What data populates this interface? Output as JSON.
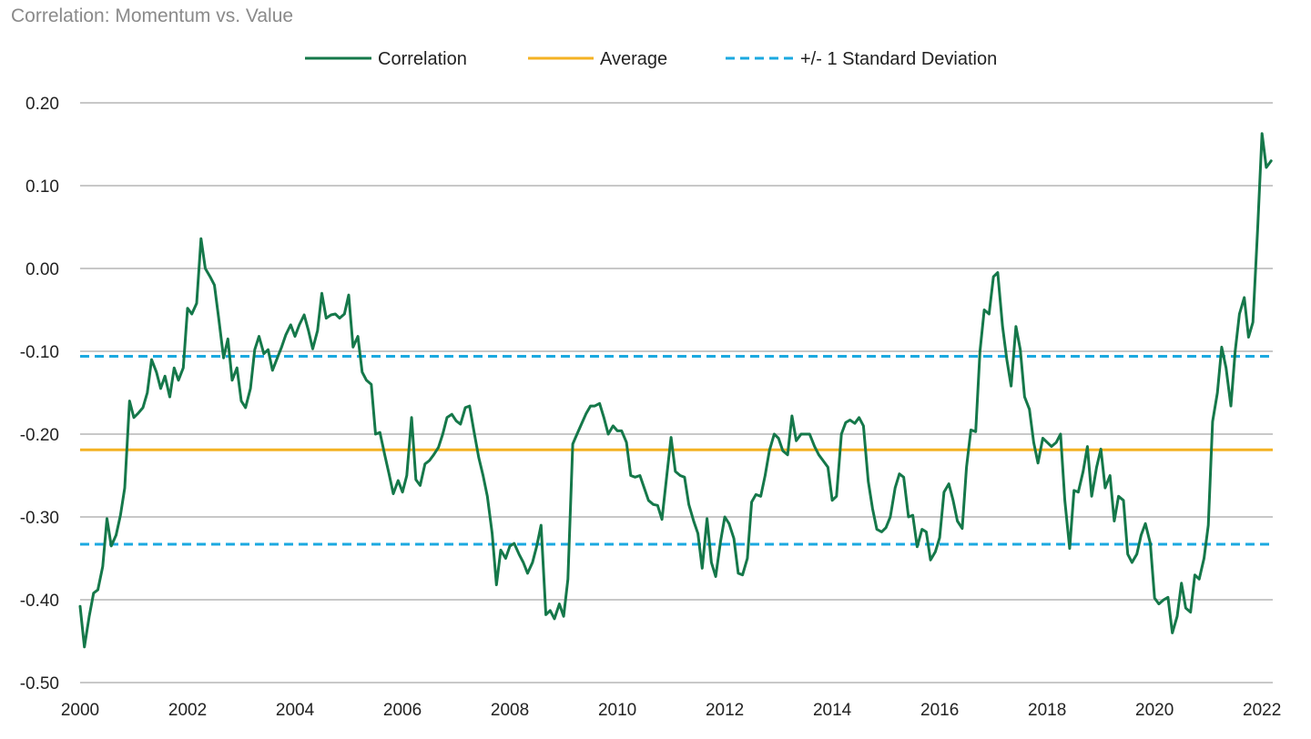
{
  "chart_data": {
    "type": "line",
    "title": "Correlation: Momentum vs. Value",
    "xlabel": "",
    "ylabel": "",
    "xlim": [
      2000,
      2022.2
    ],
    "ylim": [
      -0.5,
      0.2
    ],
    "y_ticks": [
      0.2,
      0.1,
      0.0,
      -0.1,
      -0.2,
      -0.3,
      -0.4,
      -0.5
    ],
    "y_tick_labels": [
      "0.20",
      "0.10",
      "0.00",
      "-0.10",
      "-0.20",
      "-0.30",
      "-0.40",
      "-0.50"
    ],
    "x_ticks": [
      2000,
      2002,
      2004,
      2006,
      2008,
      2010,
      2012,
      2014,
      2016,
      2018,
      2020,
      2022
    ],
    "x_tick_labels": [
      "2000",
      "2002",
      "2004",
      "2006",
      "2008",
      "2010",
      "2012",
      "2014",
      "2016",
      "2018",
      "2020",
      "2022"
    ],
    "grid": "horizontal",
    "legend_position": "top",
    "legend": [
      "Correlation",
      "Average",
      "+/- 1 Standard Deviation"
    ],
    "colors": {
      "correlation": "#15784a",
      "average": "#f4b223",
      "std": "#1ba9e0",
      "grid": "#c8c8c8"
    },
    "average": -0.219,
    "std_upper": -0.106,
    "std_lower": -0.333,
    "series": [
      {
        "name": "Correlation",
        "x": [
          2000.0,
          2000.08,
          2000.17,
          2000.25,
          2000.33,
          2000.42,
          2000.5,
          2000.58,
          2000.67,
          2000.75,
          2000.83,
          2000.92,
          2001.0,
          2001.08,
          2001.17,
          2001.25,
          2001.33,
          2001.42,
          2001.5,
          2001.58,
          2001.67,
          2001.75,
          2001.83,
          2001.92,
          2002.0,
          2002.08,
          2002.17,
          2002.25,
          2002.33,
          2002.42,
          2002.5,
          2002.58,
          2002.67,
          2002.75,
          2002.83,
          2002.92,
          2003.0,
          2003.08,
          2003.17,
          2003.25,
          2003.33,
          2003.42,
          2003.5,
          2003.58,
          2003.67,
          2003.75,
          2003.83,
          2003.92,
          2004.0,
          2004.08,
          2004.17,
          2004.25,
          2004.33,
          2004.42,
          2004.5,
          2004.58,
          2004.67,
          2004.75,
          2004.83,
          2004.92,
          2005.0,
          2005.08,
          2005.17,
          2005.25,
          2005.33,
          2005.42,
          2005.5,
          2005.58,
          2005.67,
          2005.75,
          2005.83,
          2005.92,
          2006.0,
          2006.08,
          2006.17,
          2006.25,
          2006.33,
          2006.42,
          2006.5,
          2006.58,
          2006.67,
          2006.75,
          2006.83,
          2006.92,
          2007.0,
          2007.08,
          2007.17,
          2007.25,
          2007.33,
          2007.42,
          2007.5,
          2007.58,
          2007.67,
          2007.75,
          2007.83,
          2007.92,
          2008.0,
          2008.08,
          2008.17,
          2008.25,
          2008.33,
          2008.42,
          2008.5,
          2008.58,
          2008.67,
          2008.75,
          2008.83,
          2008.92,
          2009.0,
          2009.08,
          2009.17,
          2009.25,
          2009.33,
          2009.42,
          2009.5,
          2009.58,
          2009.67,
          2009.75,
          2009.83,
          2009.92,
          2010.0,
          2010.08,
          2010.17,
          2010.25,
          2010.33,
          2010.42,
          2010.5,
          2010.58,
          2010.67,
          2010.75,
          2010.83,
          2010.92,
          2011.0,
          2011.08,
          2011.17,
          2011.25,
          2011.33,
          2011.42,
          2011.5,
          2011.58,
          2011.67,
          2011.75,
          2011.83,
          2011.92,
          2012.0,
          2012.08,
          2012.17,
          2012.25,
          2012.33,
          2012.42,
          2012.5,
          2012.58,
          2012.67,
          2012.75,
          2012.83,
          2012.92,
          2013.0,
          2013.08,
          2013.17,
          2013.25,
          2013.33,
          2013.42,
          2013.5,
          2013.58,
          2013.67,
          2013.75,
          2013.83,
          2013.92,
          2014.0,
          2014.08,
          2014.17,
          2014.25,
          2014.33,
          2014.42,
          2014.5,
          2014.58,
          2014.67,
          2014.75,
          2014.83,
          2014.92,
          2015.0,
          2015.08,
          2015.17,
          2015.25,
          2015.33,
          2015.42,
          2015.5,
          2015.58,
          2015.67,
          2015.75,
          2015.83,
          2015.92,
          2016.0,
          2016.08,
          2016.17,
          2016.25,
          2016.33,
          2016.42,
          2016.5,
          2016.58,
          2016.67,
          2016.75,
          2016.83,
          2016.92,
          2017.0,
          2017.08,
          2017.17,
          2017.25,
          2017.33,
          2017.42,
          2017.5,
          2017.58,
          2017.67,
          2017.75,
          2017.83,
          2017.92,
          2018.0,
          2018.08,
          2018.17,
          2018.25,
          2018.33,
          2018.42,
          2018.5,
          2018.58,
          2018.67,
          2018.75,
          2018.83,
          2018.92,
          2019.0,
          2019.08,
          2019.17,
          2019.25,
          2019.33,
          2019.42,
          2019.5,
          2019.58,
          2019.67,
          2019.75,
          2019.83,
          2019.92,
          2020.0,
          2020.08,
          2020.17,
          2020.25,
          2020.33,
          2020.42,
          2020.5,
          2020.58,
          2020.67,
          2020.75,
          2020.83,
          2020.92,
          2021.0,
          2021.08,
          2021.17,
          2021.25,
          2021.33,
          2021.42,
          2021.5,
          2021.58,
          2021.67,
          2021.75,
          2021.83,
          2021.92,
          2022.0,
          2022.08,
          2022.17
        ],
        "values": [
          -0.408,
          -0.457,
          -0.42,
          -0.392,
          -0.388,
          -0.36,
          -0.302,
          -0.335,
          -0.322,
          -0.298,
          -0.265,
          -0.16,
          -0.18,
          -0.175,
          -0.168,
          -0.15,
          -0.11,
          -0.125,
          -0.145,
          -0.13,
          -0.155,
          -0.12,
          -0.135,
          -0.12,
          -0.048,
          -0.055,
          -0.042,
          0.036,
          0.0,
          -0.01,
          -0.02,
          -0.06,
          -0.108,
          -0.085,
          -0.135,
          -0.12,
          -0.16,
          -0.168,
          -0.145,
          -0.098,
          -0.082,
          -0.103,
          -0.098,
          -0.123,
          -0.108,
          -0.095,
          -0.08,
          -0.068,
          -0.082,
          -0.068,
          -0.056,
          -0.075,
          -0.097,
          -0.075,
          -0.03,
          -0.06,
          -0.056,
          -0.055,
          -0.06,
          -0.055,
          -0.032,
          -0.095,
          -0.082,
          -0.125,
          -0.135,
          -0.14,
          -0.2,
          -0.198,
          -0.225,
          -0.248,
          -0.272,
          -0.256,
          -0.27,
          -0.25,
          -0.18,
          -0.255,
          -0.262,
          -0.236,
          -0.232,
          -0.225,
          -0.216,
          -0.2,
          -0.18,
          -0.176,
          -0.184,
          -0.188,
          -0.168,
          -0.166,
          -0.196,
          -0.228,
          -0.25,
          -0.275,
          -0.32,
          -0.382,
          -0.34,
          -0.35,
          -0.335,
          -0.332,
          -0.345,
          -0.355,
          -0.368,
          -0.355,
          -0.335,
          -0.31,
          -0.418,
          -0.413,
          -0.423,
          -0.405,
          -0.42,
          -0.375,
          -0.212,
          -0.2,
          -0.188,
          -0.175,
          -0.166,
          -0.166,
          -0.163,
          -0.18,
          -0.2,
          -0.19,
          -0.196,
          -0.196,
          -0.21,
          -0.25,
          -0.252,
          -0.25,
          -0.265,
          -0.28,
          -0.285,
          -0.286,
          -0.303,
          -0.25,
          -0.204,
          -0.245,
          -0.25,
          -0.252,
          -0.285,
          -0.305,
          -0.32,
          -0.362,
          -0.302,
          -0.355,
          -0.372,
          -0.33,
          -0.3,
          -0.308,
          -0.326,
          -0.368,
          -0.37,
          -0.35,
          -0.282,
          -0.273,
          -0.275,
          -0.25,
          -0.22,
          -0.2,
          -0.205,
          -0.22,
          -0.225,
          -0.178,
          -0.208,
          -0.2,
          -0.2,
          -0.2,
          -0.215,
          -0.225,
          -0.232,
          -0.24,
          -0.28,
          -0.275,
          -0.2,
          -0.186,
          -0.183,
          -0.187,
          -0.18,
          -0.19,
          -0.257,
          -0.29,
          -0.315,
          -0.318,
          -0.313,
          -0.3,
          -0.265,
          -0.248,
          -0.252,
          -0.3,
          -0.298,
          -0.336,
          -0.315,
          -0.318,
          -0.352,
          -0.342,
          -0.325,
          -0.27,
          -0.26,
          -0.28,
          -0.305,
          -0.314,
          -0.24,
          -0.195,
          -0.197,
          -0.1,
          -0.05,
          -0.055,
          -0.01,
          -0.005,
          -0.07,
          -0.11,
          -0.142,
          -0.07,
          -0.098,
          -0.155,
          -0.17,
          -0.21,
          -0.235,
          -0.205,
          -0.21,
          -0.215,
          -0.21,
          -0.2,
          -0.28,
          -0.338,
          -0.268,
          -0.27,
          -0.245,
          -0.215,
          -0.275,
          -0.24,
          -0.218,
          -0.265,
          -0.25,
          -0.305,
          -0.275,
          -0.28,
          -0.345,
          -0.355,
          -0.345,
          -0.322,
          -0.308,
          -0.332,
          -0.398,
          -0.405,
          -0.4,
          -0.397,
          -0.44,
          -0.42,
          -0.38,
          -0.41,
          -0.415,
          -0.37,
          -0.375,
          -0.35,
          -0.31,
          -0.185,
          -0.15,
          -0.095,
          -0.12,
          -0.166,
          -0.1,
          -0.055,
          -0.035,
          -0.083,
          -0.065,
          0.05,
          0.163,
          0.122,
          0.13
        ]
      }
    ]
  }
}
